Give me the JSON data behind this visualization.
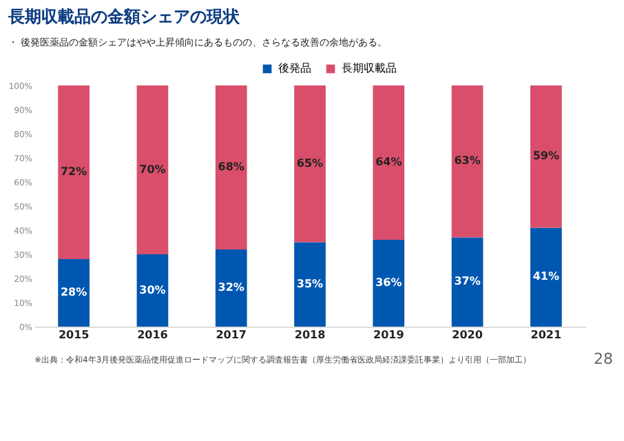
{
  "chart_data": {
    "type": "bar",
    "title": "長期収載品の金額シェアの現状",
    "subtitle": "・ 後発医薬品の金額シェアはやや上昇傾向にあるものの、さらなる改善の余地がある。",
    "categories": [
      "2015",
      "2016",
      "2017",
      "2018",
      "2019",
      "2020",
      "2021"
    ],
    "series": [
      {
        "name": "後発品",
        "color": "#0057b0",
        "values": [
          28,
          30,
          32,
          35,
          36,
          37,
          41
        ],
        "value_labels": [
          "28%",
          "30%",
          "32%",
          "35%",
          "36%",
          "37%",
          "41%"
        ]
      },
      {
        "name": "長期収載品",
        "color": "#d94f6b",
        "values": [
          72,
          70,
          68,
          65,
          64,
          63,
          59
        ],
        "value_labels": [
          "72%",
          "70%",
          "68%",
          "65%",
          "64%",
          "63%",
          "59%"
        ]
      }
    ],
    "stacked": true,
    "ylim": [
      0,
      100
    ],
    "yticks": [
      {
        "value": 0,
        "label": "0%"
      },
      {
        "value": 10,
        "label": "10%"
      },
      {
        "value": 20,
        "label": "20%"
      },
      {
        "value": 30,
        "label": "30%"
      },
      {
        "value": 40,
        "label": "40%"
      },
      {
        "value": 50,
        "label": "50%"
      },
      {
        "value": 60,
        "label": "60%"
      },
      {
        "value": 70,
        "label": "70%"
      },
      {
        "value": 80,
        "label": "80%"
      },
      {
        "value": 90,
        "label": "90%"
      },
      {
        "value": 100,
        "label": "100%"
      }
    ],
    "grid": false,
    "legend": "top",
    "annotations": [
      "※出典：令和4年3月後発医薬品使用促進ロードマップに関する調査報告書（厚生労働省医政局経済課委託事業）より引用（一部加工）",
      "28"
    ]
  }
}
